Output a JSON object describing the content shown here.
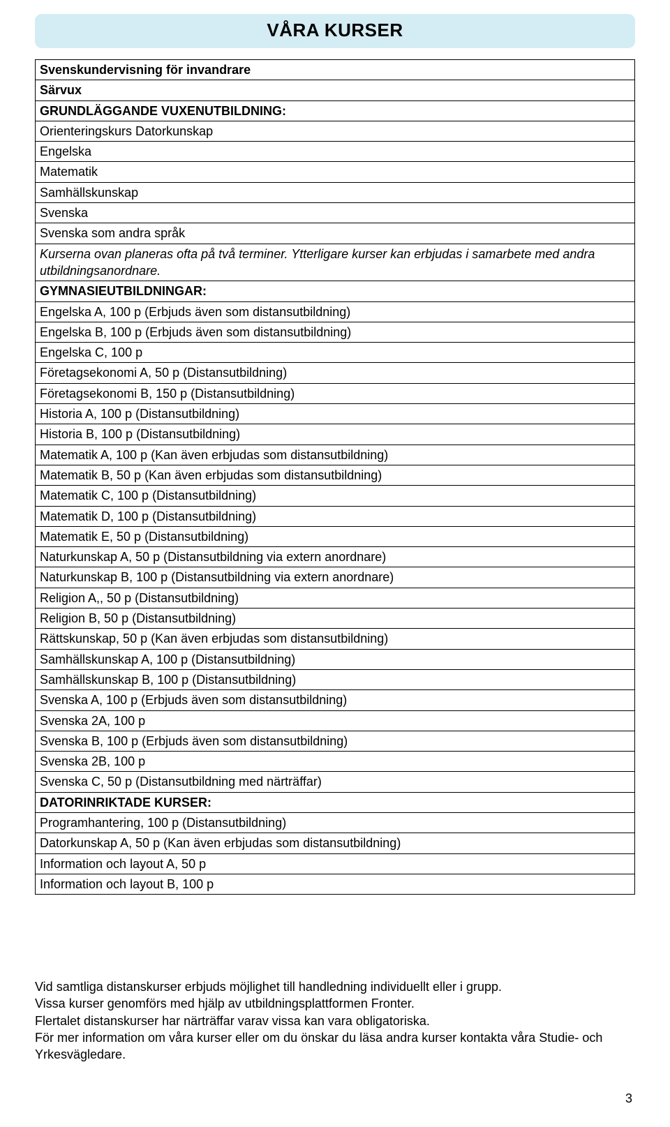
{
  "title": "VÅRA KURSER",
  "rows": [
    {
      "text": "Svenskundervisning  för invandrare",
      "bold": true,
      "italic": false
    },
    {
      "text": "Särvux",
      "bold": true,
      "italic": false
    },
    {
      "text": "GRUNDLÄGGANDE VUXENUTBILDNING:",
      "bold": true,
      "italic": false
    },
    {
      "text": "Orienteringskurs Datorkunskap",
      "bold": false,
      "italic": false
    },
    {
      "text": "Engelska",
      "bold": false,
      "italic": false
    },
    {
      "text": "Matematik",
      "bold": false,
      "italic": false
    },
    {
      "text": "Samhällskunskap",
      "bold": false,
      "italic": false
    },
    {
      "text": "Svenska",
      "bold": false,
      "italic": false
    },
    {
      "text": "Svenska som andra språk",
      "bold": false,
      "italic": false
    },
    {
      "text": "Kurserna ovan planeras ofta på två terminer. Ytterligare kurser kan erbjudas i samarbete med andra utbildningsanordnare.",
      "bold": false,
      "italic": true
    },
    {
      "text": "GYMNASIEUTBILDNINGAR:",
      "bold": true,
      "italic": false
    },
    {
      "text": "Engelska A, 100 p (Erbjuds även som distansutbildning)",
      "bold": false,
      "italic": false
    },
    {
      "text": "Engelska B, 100 p (Erbjuds även som distansutbildning)",
      "bold": false,
      "italic": false
    },
    {
      "text": "Engelska C, 100 p",
      "bold": false,
      "italic": false
    },
    {
      "text": "Företagsekonomi A, 50 p (Distansutbildning)",
      "bold": false,
      "italic": false
    },
    {
      "text": "Företagsekonomi B, 150 p (Distansutbildning)",
      "bold": false,
      "italic": false
    },
    {
      "text": "Historia A, 100 p (Distansutbildning)",
      "bold": false,
      "italic": false
    },
    {
      "text": "Historia B, 100 p (Distansutbildning)",
      "bold": false,
      "italic": false
    },
    {
      "text": "Matematik A, 100 p (Kan även erbjudas som distansutbildning)",
      "bold": false,
      "italic": false
    },
    {
      "text": "Matematik B, 50 p (Kan även erbjudas som distansutbildning)",
      "bold": false,
      "italic": false
    },
    {
      "text": "Matematik C, 100 p (Distansutbildning)",
      "bold": false,
      "italic": false
    },
    {
      "text": "Matematik D, 100 p (Distansutbildning)",
      "bold": false,
      "italic": false
    },
    {
      "text": "Matematik E, 50 p (Distansutbildning)",
      "bold": false,
      "italic": false
    },
    {
      "text": "Naturkunskap A, 50 p (Distansutbildning via extern anordnare)",
      "bold": false,
      "italic": false
    },
    {
      "text": "Naturkunskap B, 100 p (Distansutbildning via extern anordnare)",
      "bold": false,
      "italic": false
    },
    {
      "text": "Religion A,, 50 p (Distansutbildning)",
      "bold": false,
      "italic": false
    },
    {
      "text": "Religion B, 50 p (Distansutbildning)",
      "bold": false,
      "italic": false
    },
    {
      "text": "Rättskunskap, 50 p (Kan även erbjudas som distansutbildning)",
      "bold": false,
      "italic": false
    },
    {
      "text": "Samhällskunskap A, 100 p (Distansutbildning)",
      "bold": false,
      "italic": false
    },
    {
      "text": "Samhällskunskap B, 100 p (Distansutbildning)",
      "bold": false,
      "italic": false
    },
    {
      "text": "Svenska A, 100 p (Erbjuds även som distansutbildning)",
      "bold": false,
      "italic": false
    },
    {
      "text": "Svenska 2A, 100 p",
      "bold": false,
      "italic": false
    },
    {
      "text": "Svenska B, 100 p (Erbjuds även som distansutbildning)",
      "bold": false,
      "italic": false
    },
    {
      "text": "Svenska 2B, 100 p",
      "bold": false,
      "italic": false
    },
    {
      "text": "Svenska C, 50 p (Distansutbildning med närträffar)",
      "bold": false,
      "italic": false
    },
    {
      "text": "DATORINRIKTADE KURSER:",
      "bold": true,
      "italic": false
    },
    {
      "text": "Programhantering, 100 p (Distansutbildning)",
      "bold": false,
      "italic": false
    },
    {
      "text": "Datorkunskap A, 50 p (Kan även erbjudas som distansutbildning)",
      "bold": false,
      "italic": false
    },
    {
      "text": "Information och layout A, 50 p",
      "bold": false,
      "italic": false
    },
    {
      "text": "Information och layout B, 100 p",
      "bold": false,
      "italic": false
    }
  ],
  "footer": {
    "line1": "Vid samtliga distanskurser erbjuds möjlighet till handledning individuellt eller i grupp.",
    "line2": "Vissa kurser genomförs med hjälp av utbildningsplattformen Fronter.",
    "line3": "Flertalet distanskurser har närträffar varav vissa kan vara obligatoriska.",
    "line4": "För mer information om våra kurser eller om du önskar du läsa andra kurser kontakta våra Studie- och Yrkesvägledare."
  },
  "pageNumber": "3",
  "colors": {
    "bannerBg": "#d4ecf3",
    "border": "#000000",
    "text": "#000000",
    "pageBg": "#ffffff"
  }
}
